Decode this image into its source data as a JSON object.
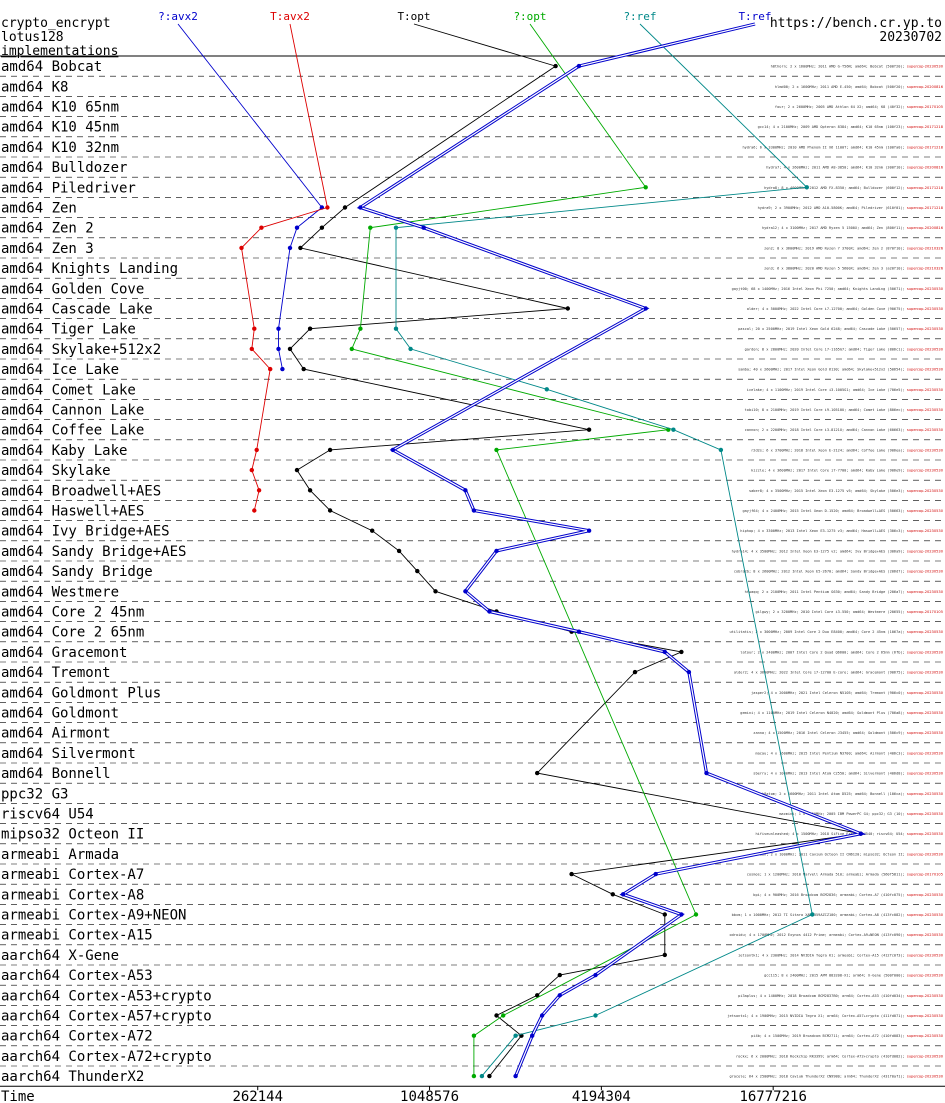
{
  "header": {
    "left_lines": [
      "crypto_encrypt",
      "lotus128",
      "implementations"
    ],
    "right_lines": [
      "https://bench.cr.yp.to",
      "20230702"
    ]
  },
  "chart_data": {
    "type": "line",
    "x_scale": "log2",
    "xlabel": "Time",
    "x_ticks": [
      262144,
      1048576,
      4194304,
      16777216
    ],
    "x_tick_labels": [
      "262144",
      "1048576",
      "4194304",
      "16777216"
    ],
    "xlim": [
      32768,
      67108864
    ],
    "grid": "dashed rows",
    "categories": [
      "amd64 Bobcat",
      "amd64 K8",
      "amd64 K10 65nm",
      "amd64 K10 45nm",
      "amd64 K10 32nm",
      "amd64 Bulldozer",
      "amd64 Piledriver",
      "amd64 Zen",
      "amd64 Zen 2",
      "amd64 Zen 3",
      "amd64 Knights Landing",
      "amd64 Golden Cove",
      "amd64 Cascade Lake",
      "amd64 Tiger Lake",
      "amd64 Skylake+512x2",
      "amd64 Ice Lake",
      "amd64 Comet Lake",
      "amd64 Cannon Lake",
      "amd64 Coffee Lake",
      "amd64 Kaby Lake",
      "amd64 Skylake",
      "amd64 Broadwell+AES",
      "amd64 Haswell+AES",
      "amd64 Ivy Bridge+AES",
      "amd64 Sandy Bridge+AES",
      "amd64 Sandy Bridge",
      "amd64 Westmere",
      "amd64 Core 2 45nm",
      "amd64 Core 2 65nm",
      "amd64 Gracemont",
      "amd64 Tremont",
      "amd64 Goldmont Plus",
      "amd64 Goldmont",
      "amd64 Airmont",
      "amd64 Silvermont",
      "amd64 Bonnell",
      "ppc32 G3",
      "riscv64 U54",
      "mipso32 Octeon II",
      "armeabi Armada",
      "armeabi Cortex-A7",
      "armeabi Cortex-A8",
      "armeabi Cortex-A9+NEON",
      "armeabi Cortex-A15",
      "aarch64 X-Gene",
      "aarch64 Cortex-A53",
      "aarch64 Cortex-A53+crypto",
      "aarch64 Cortex-A57+crypto",
      "aarch64 Cortex-A72",
      "aarch64 Cortex-A72+crypto",
      "aarch64 ThunderX2"
    ],
    "series": [
      {
        "name": "?:avx2",
        "color": "#0000cc",
        "style": "single",
        "points": [
          [
            0,
            null
          ],
          [
            1,
            null
          ],
          [
            2,
            null
          ],
          [
            3,
            null
          ],
          [
            4,
            null
          ],
          [
            5,
            null
          ],
          [
            6,
            null
          ],
          [
            7,
            440000
          ],
          [
            8,
            360000
          ],
          [
            9,
            340000
          ],
          [
            10,
            null
          ],
          [
            11,
            null
          ],
          [
            12,
            null
          ],
          [
            13,
            310000
          ],
          [
            14,
            310000
          ],
          [
            15,
            320000
          ],
          [
            16,
            null
          ],
          [
            17,
            null
          ],
          [
            18,
            null
          ],
          [
            19,
            null
          ],
          [
            20,
            null
          ],
          [
            21,
            null
          ],
          [
            22,
            null
          ],
          [
            23,
            null
          ],
          [
            24,
            null
          ],
          [
            25,
            null
          ],
          [
            26,
            null
          ],
          [
            27,
            null
          ],
          [
            28,
            null
          ],
          [
            29,
            null
          ],
          [
            30,
            null
          ],
          [
            31,
            null
          ],
          [
            32,
            null
          ],
          [
            33,
            null
          ],
          [
            34,
            null
          ],
          [
            35,
            null
          ],
          [
            36,
            null
          ],
          [
            37,
            null
          ],
          [
            38,
            null
          ],
          [
            39,
            null
          ],
          [
            40,
            null
          ],
          [
            41,
            null
          ],
          [
            42,
            null
          ],
          [
            43,
            null
          ],
          [
            44,
            null
          ],
          [
            45,
            null
          ],
          [
            46,
            null
          ],
          [
            47,
            null
          ],
          [
            48,
            null
          ],
          [
            49,
            null
          ],
          [
            50,
            null
          ]
        ]
      },
      {
        "name": "T:avx2",
        "color": "#dd0000",
        "style": "single",
        "points": [
          [
            7,
            460000
          ],
          [
            8,
            270000
          ],
          [
            9,
            230000
          ],
          [
            13,
            255000
          ],
          [
            14,
            250000
          ],
          [
            15,
            290000
          ],
          [
            19,
            260000
          ],
          [
            20,
            250000
          ],
          [
            21,
            265000
          ],
          [
            22,
            255000
          ]
        ]
      },
      {
        "name": "T:opt",
        "color": "#000000",
        "style": "single",
        "points": [
          [
            0,
            2900000
          ],
          [
            7,
            530000
          ],
          [
            8,
            440000
          ],
          [
            9,
            370000
          ],
          [
            12,
            3200000
          ],
          [
            13,
            400000
          ],
          [
            14,
            340000
          ],
          [
            15,
            380000
          ],
          [
            18,
            3800000
          ],
          [
            19,
            470000
          ],
          [
            20,
            360000
          ],
          [
            21,
            400000
          ],
          [
            22,
            470000
          ],
          [
            23,
            660000
          ],
          [
            24,
            820000
          ],
          [
            25,
            950000
          ],
          [
            26,
            1100000
          ],
          [
            27,
            1800000
          ],
          [
            28,
            3300000
          ],
          [
            29,
            8000000
          ],
          [
            30,
            5500000
          ],
          [
            35,
            2500000
          ],
          [
            38,
            34000000
          ],
          [
            40,
            3300000
          ],
          [
            41,
            4600000
          ],
          [
            42,
            7000000
          ],
          [
            44,
            7000000
          ],
          [
            45,
            3000000
          ],
          [
            46,
            2500000
          ],
          [
            47,
            1800000
          ],
          [
            48,
            2200000
          ],
          [
            50,
            1700000
          ]
        ]
      },
      {
        "name": "?:opt",
        "color": "#00aa00",
        "style": "single",
        "points": [
          [
            6,
            6000000
          ],
          [
            8,
            650000
          ],
          [
            13,
            600000
          ],
          [
            14,
            560000
          ],
          [
            18,
            7200000
          ],
          [
            19,
            1800000
          ],
          [
            42,
            9000000
          ],
          [
            47,
            1900000
          ],
          [
            48,
            1500000
          ],
          [
            50,
            1500000
          ]
        ]
      },
      {
        "name": "?:ref",
        "color": "#008888",
        "style": "single",
        "points": [
          [
            6,
            22000000
          ],
          [
            8,
            800000
          ],
          [
            13,
            800000
          ],
          [
            14,
            900000
          ],
          [
            16,
            2700000
          ],
          [
            18,
            7500000
          ],
          [
            19,
            11000000
          ],
          [
            42,
            23000000
          ],
          [
            47,
            4000000
          ],
          [
            48,
            2100000
          ],
          [
            50,
            1600000
          ]
        ]
      },
      {
        "name": "T:ref",
        "color": "#0000cc",
        "style": "double",
        "points": [
          [
            0,
            3500000
          ],
          [
            7,
            600000
          ],
          [
            8,
            1000000
          ],
          [
            12,
            6000000
          ],
          [
            19,
            780000
          ],
          [
            21,
            1400000
          ],
          [
            22,
            1500000
          ],
          [
            23,
            3800000
          ],
          [
            24,
            1800000
          ],
          [
            26,
            1400000
          ],
          [
            27,
            1700000
          ],
          [
            28,
            3500000
          ],
          [
            29,
            7000000
          ],
          [
            30,
            8500000
          ],
          [
            35,
            9800000
          ],
          [
            38,
            34000000
          ],
          [
            40,
            6500000
          ],
          [
            41,
            5000000
          ],
          [
            42,
            8000000
          ],
          [
            45,
            4000000
          ],
          [
            46,
            3000000
          ],
          [
            47,
            2600000
          ],
          [
            48,
            2400000
          ],
          [
            50,
            2100000
          ]
        ]
      }
    ]
  },
  "machines": [
    "h8thorn; 2 x 1600MHz; 2011 AMD G-T56N; amd64; Bobcat (500f20); supercop-20230530",
    "hlmd00; 2 x 1600MHz; 2011 AMD E-450; amd64; Bobcat (500f20); supercop-20200816",
    "four; 2 x 2600MHz; 2005 AMD Athlon 64 X2; amd64; K8 (40f32); supercop-20170105",
    "gcc14; 4 x 2100MHz; 2009 AMD Opteron 8384; amd64; K10 65nm (100f23); supercop-20171218",
    "hydra6; 6 x 3300MHz; 2010 AMD Phenom II X6 1100T; amd64; K10 45nm (100fa0); supercop-20171218",
    "hydra7; 4 x 2600MHz; 2011 AMD A8-3850; amd64; K10 32nm (300f10); supercop-20200816",
    "hydra8; 8 x 4000MHz; 2012 AMD FX-8350; amd64; Bulldozer (600f12); supercop-20171218",
    "hydra9; 2 x 3900MHz; 2012 AMD A10-5800K; amd64; Piledriver (610f01); supercop-20171218",
    "hydra12; 4 x 3100MHz; 2017 AMD Ryzen 5 1500X; amd64; Zen (800f11); supercop-20200816",
    "zen2; 8 x 3600MHz; 2019 AMD Ryzen 7 3700X; amd64; Zen 2 (870f10); supercop-20210326",
    "zen3; 6 x 3800MHz; 2020 AMD Ryzen 5 5600X; amd64; Zen 3 (a20f10); supercop-20210326",
    "gayjt00; 68 x 1400MHz; 2016 Intel Xeon Phi 7250; amd64; Knights Landing (50671); supercop-20230530",
    "alder; 4 x 5000MHz; 2022 Intel Core i7-12700; amd64; Golden Cove (90675); supercop-20230530",
    "pascal; 20 x 2500MHz; 2019 Intel Xeon Gold 6248; amd64; Cascade Lake (50657); supercop-20230530",
    "gardon; 8 x 2800MHz; 2020 Intel Core i7-1165G7; amd64; Tiger Lake (806c1); supercop-20230530",
    "samba; 40 x 2600MHz; 2017 Intel Xeon Gold 6130; amd64; Skylake+512x2 (50654); supercop-20230530",
    "icelake; 4 x 1100MHz; 2019 Intel Core i3-1005G1; amd64; Ice Lake (706e5); supercop-20230530",
    "tobi10; 8 x 2100MHz; 2019 Intel Core i9-10510U; amd64; Comet Lake (806ec); supercop-20230530",
    "cannon; 2 x 2200MHz; 2018 Intel Core i3-8121U; amd64; Cannon Lake (60663); supercop-20230530",
    "r2d2s; 6 x 3700MHz; 2018 Intel Xeon E-2124; amd64; Coffee Lake (906ea); supercop-20230530",
    "kizzle; 4 x 3600MHz; 2017 Intel Core i7-7700; amd64; Kaby Lake (906e9); supercop-20230530",
    "saber8; 4 x 3500MHz; 2015 Intel Xeon E3-1275 v5; amd64; Skylake (506e3); supercop-20230530",
    "gayjf64; 4 x 2400MHz; 2015 Intel Xeon D-1520; amd64; Broadwell+AES (50663); supercop-20230530",
    "hiphop; 4 x 3300MHz; 2013 Intel Xeon E3-1275 v3; amd64; Haswell+AES (306c3); supercop-20230530",
    "hydra14; 4 x 3500MHz; 2012 Intel Xeon E3-1275 v2; amd64; Ivy Bridge+AES (306a9); supercop-20230530",
    "cobra2b; 8 x 2600MHz; 2012 Intel Xeon E5-2670; amd64; Sandy Bridge+AES (206d7); supercop-20230530",
    "hfwaqq; 2 x 2100MHz; 2011 Intel Pentium G630; amd64; Sandy Bridge (206a7); supercop-20230530",
    "gilgwy; 2 x 3200MHz; 2010 Intel Core i3-550; amd64; Westmere (20655); supercop-20170105",
    "utilitatis; 2 x 3000MHz; 2009 Intel Core 2 Duo E8400; amd64; Core 2 45nm (1067a); supercop-20230530",
    "latour; 2 x 2400MHz; 2007 Intel Core 2 Quad Q6600; amd64; Core 2 65nm (6fb); supercop-20230530",
    "alder2; 4 x 3600MHz; 2022 Intel Core i7-12700 E-core; amd64; Gracemont (90675); supercop-20230530",
    "jasper2; 4 x 2000MHz; 2021 Intel Celeron N5105; amd64; Tremont (906c0); supercop-20230530",
    "gemini; 4 x 1100MHz; 2019 Intel Celeron N4020; amd64; Goldmont Plus (706a8); supercop-20230530",
    "zanna; 4 x 1500MHz; 2016 Intel Celeron J3455; amd64; Goldmont (506c9); supercop-20230530",
    "macau; 4 x 1600MHz; 2015 Intel Pentium N3700; amd64; Airmont (406c3); supercop-20230530",
    "sberry; 4 x 1000MHz; 2013 Intel Atom C2550; amd64; Silvermont (406d8); supercop-20230530",
    "h8atom; 2 x 1600MHz; 2011 Intel Atom D525; amd64; Bonnell (106ca); supercop-20230530",
    "macmini; 1 x 1250MHz; 2005 IBM PowerPC G4; ppc32; G3 (10); supercop-20230530",
    "hifiveunleashed; 4 x 1500MHz; 2018 SiFive Freedom U540; riscv64; U54; supercop-20230530",
    "octeon; 2 x 1000MHz; 2011 Cavium Octeon II CN6120; mipso32; Octeon II; supercop-20230530",
    "cosmos; 1 x 1200MHz; 2010 Marvell Armada 510; armeabi; Armada (560f5811); supercop-20170105",
    "bpi; 4 x 900MHz; 2016 Broadcom BCM2836; armeabi; Cortex-A7 (410fc075); supercop-20230530",
    "bbxm; 1 x 1000MHz; 2012 TI Sitara XAM3359AZCZ100; armeabi; Cortex-A8 (413fc082); supercop-20230530",
    "odroidu; 4 x 1700MHz; 2012 Exynos 4412 Prime; armeabi; Cortex-A9+NEON (413fc090); supercop-20230530",
    "jetsontk1; 4 x 2300MHz; 2014 NVIDIA Tegra K1; armeabi; Cortex-A15 (412fc0f3); supercop-20230530",
    "gcc115; 8 x 2400MHz; 2015 APM 883208-X1; arm64; X-Gene (500f000); supercop-20230530",
    "pi3aplus; 4 x 1400MHz; 2018 Broadcom BCM2837B0; arm64; Cortex-A53 (410fd034); supercop-20230530",
    "jetsontx1; 4 x 1900MHz; 2015 NVIDIA Tegra X1; arm64; Cortex-A57+crypto (411fd071); supercop-20230530",
    "pi4b; 4 x 1500MHz; 2019 Broadcom BCM2711; arm64; Cortex-A72 (410fd083); supercop-20230530",
    "rockx; 6 x 2000MHz; 2018 Rockchip RK3399; arm64; Cortex-A72+crypto (410fd082); supercop-20230530",
    "gracele; 64 x 2500MHz; 2018 Cavium ThunderX2 CN9980; arm64; ThunderX2 (431f0af1); supercop-20230530"
  ]
}
